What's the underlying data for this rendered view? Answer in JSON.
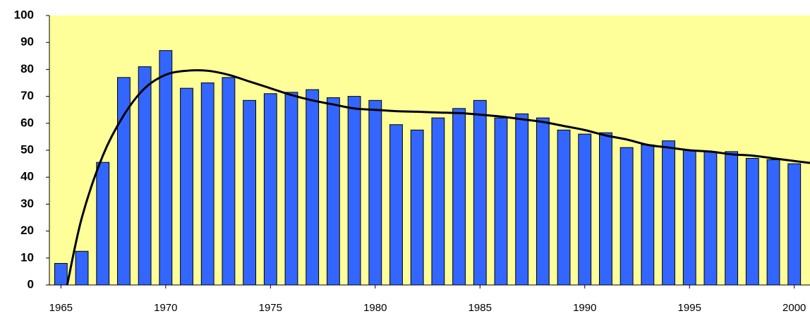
{
  "chart_data": {
    "type": "bar",
    "x": [
      1965,
      1966,
      1967,
      1968,
      1969,
      1970,
      1971,
      1972,
      1973,
      1974,
      1975,
      1976,
      1977,
      1978,
      1979,
      1980,
      1981,
      1982,
      1983,
      1984,
      1985,
      1986,
      1987,
      1988,
      1989,
      1990,
      1991,
      1992,
      1993,
      1994,
      1995,
      1996,
      1997,
      1998,
      1999,
      2000
    ],
    "values": [
      8,
      12.5,
      45.5,
      77,
      81,
      87,
      73,
      75,
      77,
      68.5,
      71,
      71.5,
      72.5,
      69.5,
      70,
      68.5,
      59.5,
      57.5,
      62,
      65.5,
      68.5,
      62,
      63.5,
      62,
      57.5,
      56,
      56.5,
      51,
      52,
      53.5,
      50,
      49.5,
      49.5,
      47,
      46.5,
      45
    ],
    "color": "#3366ff",
    "trend": {
      "color": "#000000",
      "x": [
        1965.3,
        1966,
        1967,
        1968,
        1969,
        1970,
        1971,
        1972,
        1973,
        1974,
        1975,
        1976,
        1977,
        1978,
        1979,
        1980,
        1981,
        1982,
        1983,
        1984,
        1985,
        1986,
        1987,
        1988,
        1989,
        1990,
        1991,
        1992,
        1993,
        1994,
        1995,
        1996,
        1997,
        1998,
        1999,
        2000,
        2000.75
      ],
      "values": [
        0,
        25,
        48,
        63,
        73,
        78,
        79.5,
        79.5,
        78,
        75.5,
        73,
        70.5,
        68.5,
        67,
        65.5,
        65,
        64.5,
        64.3,
        64,
        63.8,
        63.2,
        62.5,
        61.5,
        60.5,
        59,
        57.5,
        55.5,
        54,
        52,
        51,
        50,
        49.5,
        48.5,
        48,
        47,
        46,
        45.3
      ]
    },
    "xlim": [
      1964.45,
      2000.75
    ],
    "xticks": [
      1965,
      1970,
      1975,
      1980,
      1985,
      1990,
      1995,
      2000
    ],
    "ylim": [
      0,
      100
    ],
    "yticks": [
      0,
      10,
      20,
      30,
      40,
      50,
      60,
      70,
      80,
      90,
      100
    ],
    "plot_background": "#ffff99"
  }
}
